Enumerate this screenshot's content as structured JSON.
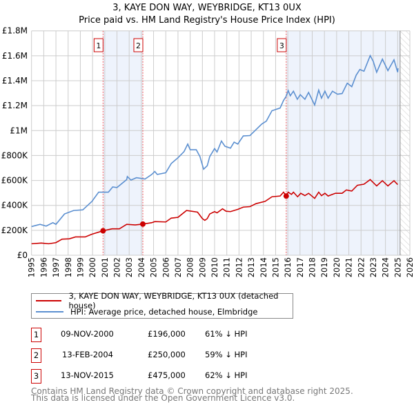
{
  "title": "3, KAYE DON WAY, WEYBRIDGE, KT13 0UX",
  "subtitle": "Price paid vs. HM Land Registry's House Price Index (HPI)",
  "chart_data": {
    "type": "line",
    "title": "3, KAYE DON WAY, WEYBRIDGE, KT13 0UX",
    "subtitle": "Price paid vs. HM Land Registry's House Price Index (HPI)",
    "xlim": [
      1995,
      2026
    ],
    "ylim": [
      0,
      1800000
    ],
    "grid": true,
    "x_ticks": [
      1995,
      1996,
      1997,
      1998,
      1999,
      2000,
      2001,
      2002,
      2003,
      2004,
      2005,
      2006,
      2007,
      2008,
      2009,
      2010,
      2011,
      2012,
      2013,
      2014,
      2015,
      2016,
      2017,
      2018,
      2019,
      2020,
      2021,
      2022,
      2023,
      2024,
      2025,
      2026
    ],
    "y_ticks": [
      {
        "v": 0,
        "label": "£0"
      },
      {
        "v": 200000,
        "label": "£200K"
      },
      {
        "v": 400000,
        "label": "£400K"
      },
      {
        "v": 600000,
        "label": "£600K"
      },
      {
        "v": 800000,
        "label": "£800K"
      },
      {
        "v": 1000000,
        "label": "£1M"
      },
      {
        "v": 1200000,
        "label": "£1.2M"
      },
      {
        "v": 1400000,
        "label": "£1.4M"
      },
      {
        "v": 1600000,
        "label": "£1.6M"
      },
      {
        "v": 1800000,
        "label": "£1.8M"
      }
    ],
    "shaded_ranges": [
      [
        2000.86,
        2004.12
      ],
      [
        2015.87,
        2025.2
      ]
    ],
    "forecast_from": 2025.2,
    "series": [
      {
        "name": "3, KAYE DON WAY, WEYBRIDGE, KT13 0UX (detached house)",
        "color": "#cc0000",
        "x": [
          1995,
          1995.8,
          1996.4,
          1997,
          1997.5,
          1998.1,
          1998.6,
          1999.4,
          1999.95,
          2000.86,
          2001.6,
          2002.2,
          2002.8,
          2003.5,
          2004.12,
          2004.85,
          2005.1,
          2006,
          2006.45,
          2007,
          2007.7,
          2008.6,
          2009,
          2009.2,
          2009.4,
          2009.6,
          2010,
          2010.2,
          2010.65,
          2010.94,
          2011.3,
          2011.9,
          2012.35,
          2012.9,
          2013.4,
          2014.14,
          2014.7,
          2015.37,
          2015.65,
          2015.87,
          2016.03,
          2016.3,
          2016.46,
          2016.8,
          2017.06,
          2017.4,
          2017.7,
          2018.2,
          2018.53,
          2018.76,
          2019.04,
          2019.3,
          2019.9,
          2020.45,
          2020.8,
          2021.24,
          2021.7,
          2022.24,
          2022.75,
          2023.28,
          2023.75,
          2024.2,
          2024.7,
          2025.0
        ],
        "y": [
          92000,
          98000,
          92000,
          101000,
          129000,
          132000,
          147000,
          147000,
          169000,
          196000,
          212000,
          212000,
          248000,
          243000,
          250000,
          261000,
          270000,
          267000,
          298000,
          304000,
          359000,
          346000,
          294000,
          280000,
          294000,
          331000,
          350000,
          340000,
          372000,
          353000,
          350000,
          368000,
          386000,
          390000,
          414000,
          432000,
          469000,
          475000,
          506000,
          475000,
          506000,
          488000,
          506000,
          469000,
          497000,
          478000,
          497000,
          456000,
          506000,
          478000,
          497000,
          475000,
          497000,
          497000,
          524000,
          515000,
          561000,
          570000,
          607000,
          556000,
          598000,
          556000,
          598000,
          567000
        ]
      },
      {
        "name": "HPI: Average price, detached house, Elmbridge",
        "color": "#5b8fd0",
        "x": [
          1995,
          1995.7,
          1996.2,
          1996.75,
          1997,
          1997.7,
          1998.45,
          1999.2,
          1999.95,
          2000.5,
          2001.3,
          2001.65,
          2002,
          2002.8,
          2002.85,
          2003.15,
          2003.6,
          2004.3,
          2004.85,
          2005.1,
          2005.3,
          2006,
          2006.45,
          2007,
          2007.5,
          2007.8,
          2008,
          2008.5,
          2008.8,
          2009.1,
          2009.4,
          2009.6,
          2010,
          2010.2,
          2010.56,
          2010.85,
          2011.3,
          2011.6,
          2011.9,
          2012.35,
          2012.9,
          2013.4,
          2013.86,
          2014.24,
          2014.7,
          2015.37,
          2015.65,
          2015.84,
          2016.03,
          2016.2,
          2016.46,
          2016.78,
          2017.02,
          2017.4,
          2017.7,
          2018.2,
          2018.53,
          2018.76,
          2019.04,
          2019.3,
          2019.66,
          2020.07,
          2020.45,
          2020.87,
          2021.24,
          2021.6,
          2021.9,
          2022.24,
          2022.75,
          2023.0,
          2023.28,
          2023.75,
          2024.2,
          2024.7,
          2025.0,
          2025.03
        ],
        "y": [
          230000,
          248000,
          234000,
          261000,
          248000,
          331000,
          359000,
          364000,
          432000,
          506000,
          506000,
          548000,
          543000,
          607000,
          631000,
          603000,
          622000,
          611000,
          648000,
          672000,
          648000,
          662000,
          736000,
          782000,
          832000,
          892000,
          846000,
          846000,
          791000,
          690000,
          718000,
          791000,
          856000,
          828000,
          916000,
          874000,
          859000,
          907000,
          892000,
          957000,
          960000,
          1008000,
          1052000,
          1076000,
          1159000,
          1181000,
          1242000,
          1270000,
          1321000,
          1279000,
          1316000,
          1251000,
          1288000,
          1251000,
          1306000,
          1205000,
          1325000,
          1260000,
          1316000,
          1260000,
          1316000,
          1292000,
          1297000,
          1380000,
          1352000,
          1444000,
          1490000,
          1476000,
          1601000,
          1555000,
          1468000,
          1573000,
          1481000,
          1568000,
          1468000,
          1500000
        ]
      }
    ],
    "sales": [
      {
        "id": "1",
        "x": 2000.86,
        "y": 196000,
        "date": "09-NOV-2000",
        "price": "£196,000",
        "hpi": "61% ↓ HPI"
      },
      {
        "id": "2",
        "x": 2004.12,
        "y": 250000,
        "date": "13-FEB-2004",
        "price": "£250,000",
        "hpi": "59% ↓ HPI"
      },
      {
        "id": "3",
        "x": 2015.87,
        "y": 475000,
        "date": "13-NOV-2015",
        "price": "£475,000",
        "hpi": "62% ↓ HPI"
      }
    ]
  },
  "legend": {
    "property": "3, KAYE DON WAY, WEYBRIDGE, KT13 0UX (detached house)",
    "hpi": "HPI: Average price, detached house, Elmbridge"
  },
  "footer": {
    "line1": "Contains HM Land Registry data © Crown copyright and database right 2025.",
    "line2": "This data is licensed under the Open Government Licence v3.0."
  }
}
